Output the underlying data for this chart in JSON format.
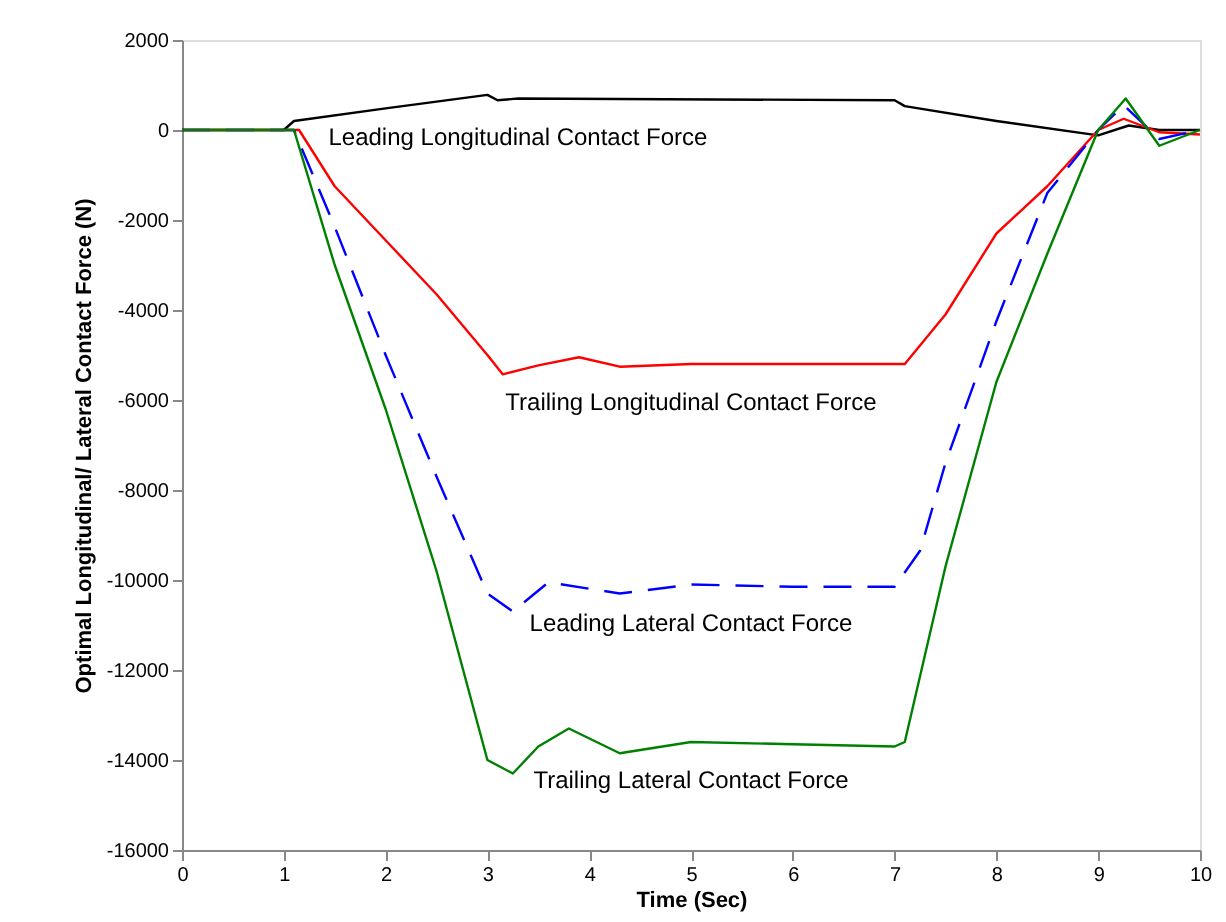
{
  "chart_data": {
    "type": "line",
    "xlabel": "Time (Sec)",
    "ylabel": "Optimal Longitudinal/ Lateral Contact Force (N)",
    "xlim": [
      0,
      10
    ],
    "xticks": [
      0,
      1,
      2,
      3,
      4,
      5,
      6,
      7,
      8,
      9,
      10
    ],
    "ylim": [
      -16000,
      2000
    ],
    "yticks": [
      -16000,
      -14000,
      -12000,
      -10000,
      -8000,
      -6000,
      -4000,
      -2000,
      0,
      2000
    ],
    "grid": false,
    "marker": "none",
    "series": [
      {
        "color": "#000000",
        "line_style": "solid",
        "x": [
          0,
          1,
          1.1,
          2,
          3,
          3.1,
          3.3,
          7,
          7.1,
          8,
          9,
          9.3,
          9.6,
          10
        ],
        "values": [
          0,
          0,
          200,
          480,
          780,
          660,
          700,
          660,
          530,
          200,
          -120,
          100,
          0,
          0
        ]
      },
      {
        "color": "#ff0000",
        "line_style": "solid",
        "x": [
          0,
          1,
          1.15,
          1.5,
          2,
          2.5,
          3,
          3.15,
          3.5,
          3.9,
          4.3,
          5,
          6,
          7,
          7.1,
          7.5,
          8,
          8.5,
          9,
          9.25,
          9.6,
          10
        ],
        "values": [
          0,
          0,
          0,
          -1250,
          -2450,
          -3650,
          -5000,
          -5430,
          -5230,
          -5050,
          -5260,
          -5200,
          -5200,
          -5200,
          -5200,
          -4100,
          -2300,
          -1250,
          0,
          250,
          -50,
          -100
        ]
      },
      {
        "color": "#0000ff",
        "line_style": "dashed",
        "x": [
          0,
          1,
          1.1,
          1.5,
          2,
          2.5,
          3,
          3.25,
          3.6,
          4.3,
          5,
          6,
          7,
          7.25,
          7.5,
          8,
          8.5,
          9,
          9.25,
          9.6,
          10
        ],
        "values": [
          0,
          0,
          0,
          -2150,
          -5000,
          -7700,
          -10300,
          -10700,
          -10050,
          -10300,
          -10100,
          -10150,
          -10150,
          -9350,
          -7400,
          -4250,
          -1400,
          0,
          550,
          -200,
          0
        ]
      },
      {
        "color": "#008000",
        "line_style": "solid",
        "x": [
          0,
          1,
          1.1,
          1.5,
          2,
          2.5,
          3,
          3.25,
          3.5,
          3.8,
          4.3,
          5,
          6,
          7,
          7.1,
          7.5,
          8,
          8.5,
          9,
          9.27,
          9.6,
          10
        ],
        "values": [
          0,
          0,
          0,
          -3000,
          -6200,
          -9800,
          -14000,
          -14300,
          -13700,
          -13300,
          -13850,
          -13600,
          -13650,
          -13700,
          -13600,
          -9700,
          -5600,
          -2750,
          0,
          700,
          -350,
          0
        ]
      }
    ],
    "annotations": [
      "Leading Longitudinal Contact Force",
      "Trailing Longitudinal Contact Force",
      "Leading Lateral Contact Force",
      "Trailing Lateral Contact Force"
    ]
  }
}
